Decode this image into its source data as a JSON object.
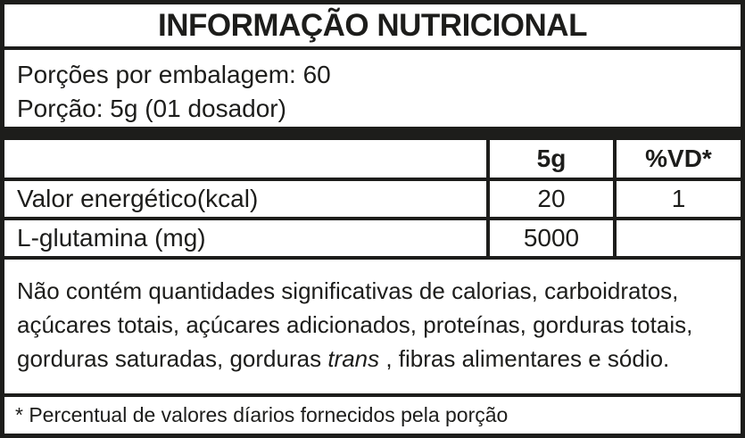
{
  "title": "INFORMAÇÃO NUTRICIONAL",
  "serving": {
    "servings_per_package": "Porções por embalagem: 60",
    "portion": "Porção: 5g (01 dosador)"
  },
  "table": {
    "header": {
      "nutrient_column": "",
      "amount_column": "5g",
      "daily_value_column": "%VD*"
    },
    "rows": [
      {
        "nutrient": "Valor energético(kcal)",
        "amount": "20",
        "daily_value": "1"
      },
      {
        "nutrient": "L-glutamina (mg)",
        "amount": "5000",
        "daily_value": ""
      }
    ]
  },
  "disclaimer": {
    "line1": "Não contém quantidades significativas de calorias, carboidratos,",
    "line2": "açúcares totais, açúcares adicionados, proteínas, gorduras totais,",
    "line3_pre": "gorduras saturadas, gorduras ",
    "line3_italic": "trans",
    "line3_post": " , fibras alimentares e sódio."
  },
  "footnote": "* Percentual de valores díarios fornecidos pela porção",
  "colors": {
    "ink": "#1d1d1b",
    "background": "#ffffff"
  }
}
